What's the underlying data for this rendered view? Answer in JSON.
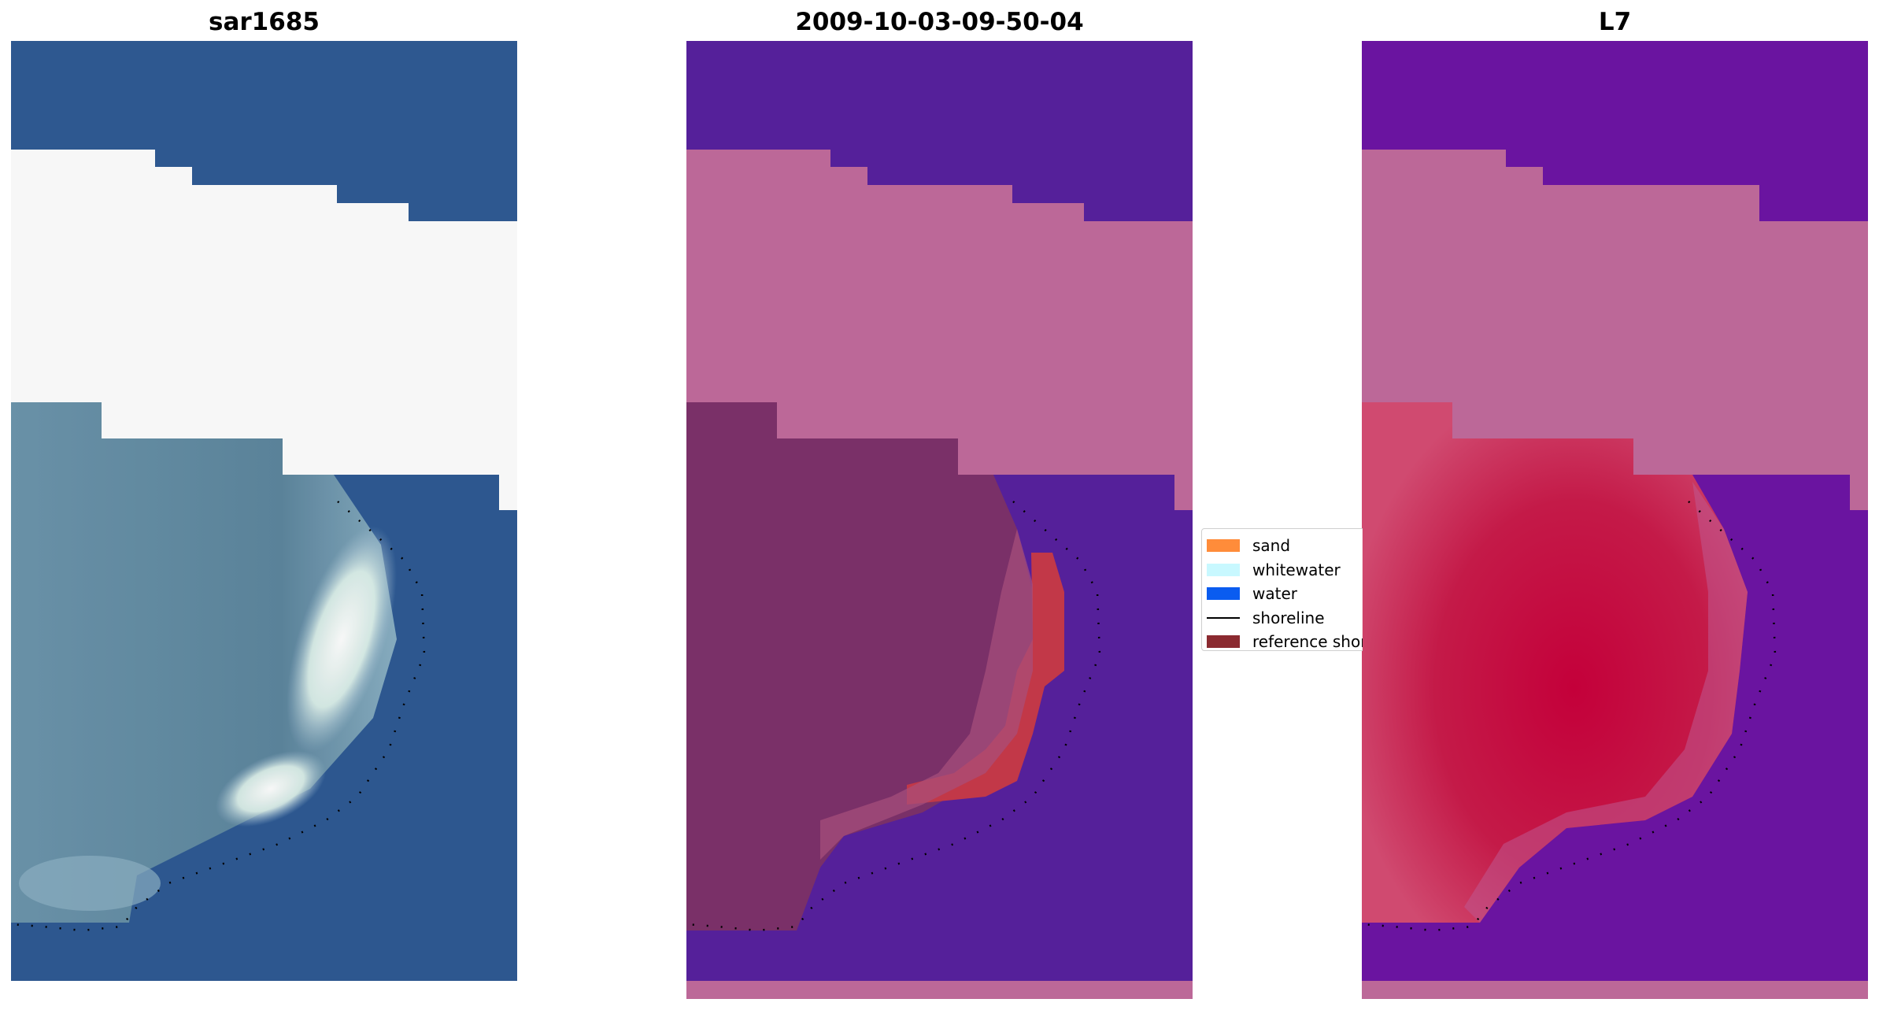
{
  "panels": [
    {
      "title": "sar1685"
    },
    {
      "title": "2009-10-03-09-50-04"
    },
    {
      "title": "L7"
    }
  ],
  "legend": {
    "items": [
      {
        "label": "sand",
        "color": "#ff8c3a",
        "kind": "patch"
      },
      {
        "label": "whitewater",
        "color": "#c8f8ff",
        "kind": "patch"
      },
      {
        "label": "water",
        "color": "#0a5cf0",
        "kind": "patch"
      },
      {
        "label": "shoreline",
        "color": "#000000",
        "kind": "line"
      },
      {
        "label": "reference shoreline",
        "color": "#8b2a30",
        "kind": "patch"
      }
    ]
  },
  "colors": {
    "rgb_water": "#2e5a94",
    "rgb_land": "#5f84a0",
    "rgb_surf": "#eef8f4",
    "class_water": "#55209a",
    "class_nodata": "#bc6898",
    "class_land": "#7a3068",
    "class_sand": "#c23848",
    "index_water": "#6a14a0",
    "index_nodata": "#bc6898",
    "index_land": "#c41a48"
  }
}
